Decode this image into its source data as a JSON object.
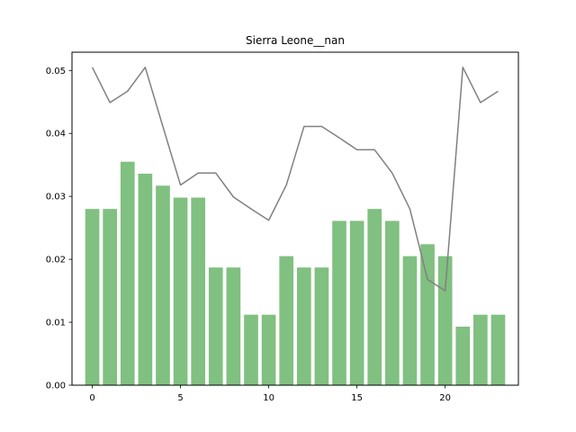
{
  "chart_data": {
    "type": "bar",
    "title": "Sierra Leone__nan",
    "xlabel": "",
    "ylabel": "",
    "xlim": [
      -1.15,
      24.15
    ],
    "ylim": [
      0,
      0.0529
    ],
    "x_ticks": [
      0,
      5,
      10,
      15,
      20
    ],
    "y_ticks": [
      0.0,
      0.01,
      0.02,
      0.03,
      0.04,
      0.05
    ],
    "y_tick_labels": [
      "0.00",
      "0.01",
      "0.02",
      "0.03",
      "0.04",
      "0.05"
    ],
    "x": [
      0,
      1,
      2,
      3,
      4,
      5,
      6,
      7,
      8,
      9,
      10,
      11,
      12,
      13,
      14,
      15,
      16,
      17,
      18,
      19,
      20,
      21,
      22,
      23
    ],
    "bar_values": [
      0.028,
      0.028,
      0.0355,
      0.0336,
      0.0317,
      0.0298,
      0.0298,
      0.0187,
      0.0187,
      0.0112,
      0.0112,
      0.0205,
      0.0187,
      0.0187,
      0.0261,
      0.0261,
      0.028,
      0.0261,
      0.0205,
      0.0224,
      0.0205,
      0.0093,
      0.0112,
      0.0112
    ],
    "line_values": [
      0.0505,
      0.0449,
      0.0467,
      0.0505,
      0.0411,
      0.0318,
      0.0337,
      0.0337,
      0.0299,
      0.028,
      0.0262,
      0.0318,
      0.0411,
      0.0411,
      0.0393,
      0.0374,
      0.0374,
      0.0337,
      0.028,
      0.0168,
      0.015,
      0.0505,
      0.0449,
      0.0467
    ],
    "colors": {
      "bar": "#80c080",
      "line": "#808080"
    },
    "grid": false,
    "legend": "none"
  }
}
